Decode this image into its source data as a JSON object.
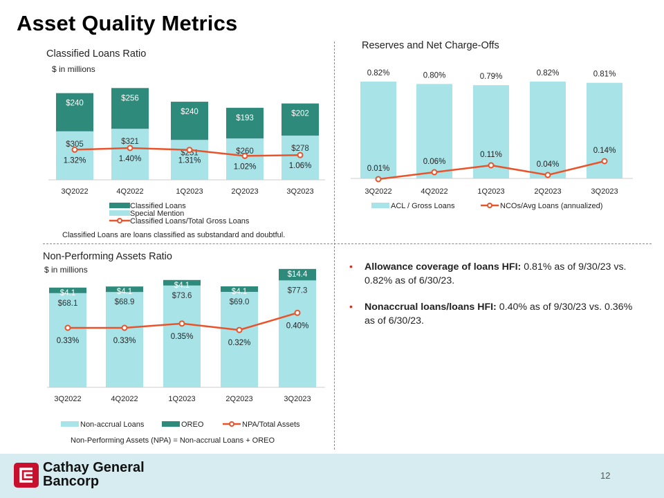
{
  "page_title": "Asset Quality Metrics",
  "page_number": "12",
  "brand": {
    "line1": "Cathay General",
    "line2": "Bancorp"
  },
  "bullets": [
    {
      "bold": "Allowance coverage of loans HFI:",
      "text": " 0.81% as of 9/30/23 vs. 0.82% as of 6/30/23."
    },
    {
      "bold": "Nonaccrual loans/loans HFI:",
      "text": " 0.40% as of 9/30/23 vs. 0.36% as of 6/30/23."
    }
  ],
  "chart_data": [
    {
      "type": "bar",
      "stacked": true,
      "title": "Classified Loans Ratio",
      "subtitle": "$ in millions",
      "categories": [
        "3Q2022",
        "4Q2022",
        "1Q2023",
        "2Q2023",
        "3Q2023"
      ],
      "series": [
        {
          "name": "Special Mention",
          "values": [
            305,
            321,
            251,
            260,
            278
          ],
          "labels": [
            "$305",
            "$321",
            "$251",
            "$260",
            "$278"
          ],
          "color": "#a8e3e8"
        },
        {
          "name": "Classified Loans",
          "values": [
            240,
            256,
            240,
            193,
            202
          ],
          "labels": [
            "$240",
            "$256",
            "$240",
            "$193",
            "$202"
          ],
          "color": "#2e8b7c"
        }
      ],
      "line": {
        "name": "Classified Loans/Total Gross Loans",
        "values": [
          1.32,
          1.4,
          1.31,
          1.02,
          1.06
        ],
        "labels": [
          "1.32%",
          "1.40%",
          "1.31%",
          "1.02%",
          "1.06%"
        ],
        "color": "#e8532a"
      },
      "legend": [
        "Classified Loans",
        "Special Mention",
        "Classified Loans/Total Gross Loans"
      ],
      "legend_position": "bottom",
      "footnote": "Classified Loans are loans classified as substandard and doubtful."
    },
    {
      "type": "bar",
      "title": "Reserves and Net Charge-Offs",
      "categories": [
        "3Q2022",
        "4Q2022",
        "1Q2023",
        "2Q2023",
        "3Q2023"
      ],
      "series": [
        {
          "name": "ACL / Gross Loans",
          "values": [
            0.82,
            0.8,
            0.79,
            0.82,
            0.81
          ],
          "labels": [
            "0.82%",
            "0.80%",
            "0.79%",
            "0.82%",
            "0.81%"
          ],
          "color": "#a8e3e8"
        }
      ],
      "line": {
        "name": "NCOs/Avg Loans (annualized)",
        "values": [
          0.01,
          0.06,
          0.11,
          0.04,
          0.14
        ],
        "labels": [
          "0.01%",
          "0.06%",
          "0.11%",
          "0.04%",
          "0.14%"
        ],
        "color": "#e8532a"
      },
      "legend": [
        "ACL / Gross Loans",
        "NCOs/Avg Loans (annualized)"
      ],
      "legend_position": "bottom"
    },
    {
      "type": "bar",
      "stacked": true,
      "title": "Non-Performing Assets Ratio",
      "subtitle": "$ in millions",
      "categories": [
        "3Q2022",
        "4Q2022",
        "1Q2023",
        "2Q2023",
        "3Q2023"
      ],
      "series": [
        {
          "name": "Non-accrual Loans",
          "values": [
            68.1,
            68.9,
            73.6,
            69.0,
            77.3
          ],
          "labels": [
            "$68.1",
            "$68.9",
            "$73.6",
            "$69.0",
            "$77.3"
          ],
          "color": "#a8e3e8"
        },
        {
          "name": "OREO",
          "values": [
            4.1,
            4.1,
            4.1,
            4.1,
            14.4
          ],
          "labels": [
            "$4.1",
            "$4.1",
            "$4.1",
            "$4.1",
            "$14.4"
          ],
          "color": "#2e8b7c"
        }
      ],
      "line": {
        "name": "NPA/Total Assets",
        "values": [
          0.33,
          0.33,
          0.35,
          0.32,
          0.4
        ],
        "labels": [
          "0.33%",
          "0.33%",
          "0.35%",
          "0.32%",
          "0.40%"
        ],
        "color": "#e8532a"
      },
      "legend": [
        "Non-accrual Loans",
        "OREO",
        "NPA/Total Assets"
      ],
      "legend_position": "bottom",
      "footnote": "Non-Performing Assets (NPA) = Non-accrual Loans + OREO"
    }
  ]
}
